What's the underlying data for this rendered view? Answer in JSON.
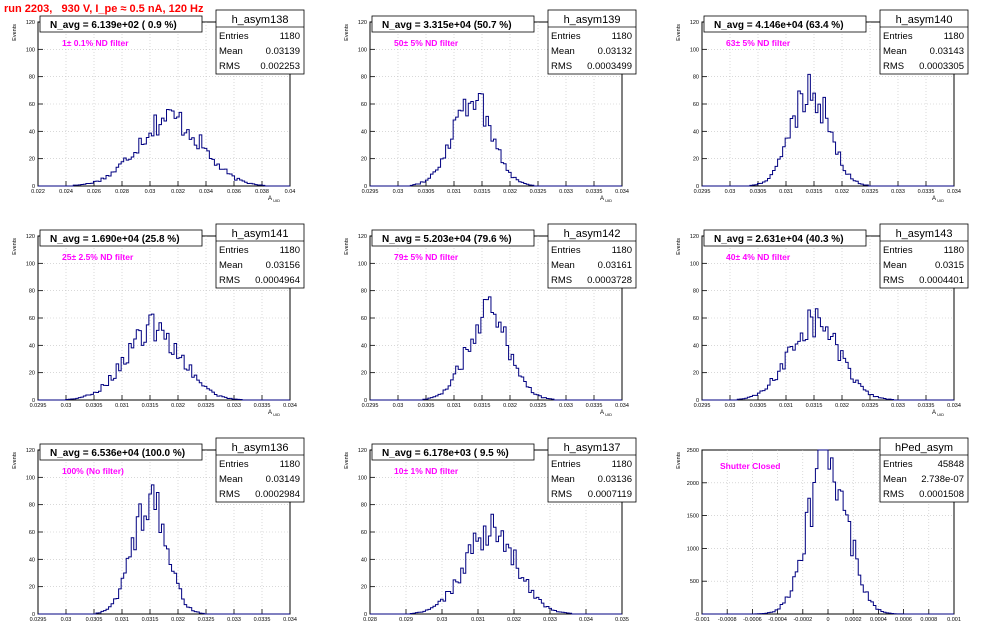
{
  "canvas_title": "run 2203,   930 V, I_pe ≈ 0.5 nA, 120 Hz",
  "colors": {
    "title": "#ff0000",
    "histogram": "#000080",
    "annotation": "#ff00ff",
    "grid": "#c0c0c0"
  },
  "chart_data": [
    {
      "type": "bar",
      "name": "h_asym138",
      "navg_label": "N_avg = 6.139e+02 ( 0.9 %)",
      "annotation": "1± 0.1% ND filter",
      "stats": {
        "Entries": "1180",
        "Mean": "0.03139",
        "RMS": "0.002253"
      },
      "stat_labels": [
        "Entries",
        "Mean",
        "RMS"
      ],
      "ylabel": "Events",
      "xlabel": "A_UID",
      "xlim": [
        0.022,
        0.04
      ],
      "ylim": [
        0,
        120
      ],
      "xticks": [
        "0.022",
        "0.024",
        "0.026",
        "0.028",
        "0.03",
        "0.032",
        "0.034",
        "0.036",
        "0.038",
        "0.04"
      ],
      "yticks": [
        "0",
        "20",
        "40",
        "60",
        "80",
        "100",
        "120"
      ],
      "mean": 0.03139,
      "rms": 0.002253,
      "peak": 50
    },
    {
      "type": "bar",
      "name": "h_asym139",
      "navg_label": "N_avg = 3.315e+04 (50.7 %)",
      "annotation": "50± 5% ND filter",
      "stats": {
        "Entries": "1180",
        "Mean": "0.03132",
        "RMS": "0.0003499"
      },
      "stat_labels": [
        "Entries",
        "Mean",
        "RMS"
      ],
      "ylabel": "Events",
      "xlabel": "A_UID",
      "xlim": [
        0.0295,
        0.034
      ],
      "ylim": [
        0,
        120
      ],
      "xticks": [
        "0.0295",
        "0.03",
        "0.0305",
        "0.031",
        "0.0315",
        "0.032",
        "0.0325",
        "0.033",
        "0.0335",
        "0.034"
      ],
      "yticks": [
        "0",
        "20",
        "40",
        "60",
        "80",
        "100",
        "120"
      ],
      "mean": 0.03132,
      "rms": 0.0003499,
      "peak": 66
    },
    {
      "type": "bar",
      "name": "h_asym140",
      "navg_label": "N_avg = 4.146e+04 (63.4 %)",
      "annotation": "63± 5% ND filter",
      "stats": {
        "Entries": "1180",
        "Mean": "0.03143",
        "RMS": "0.0003305"
      },
      "stat_labels": [
        "Entries",
        "Mean",
        "RMS"
      ],
      "ylabel": "Events",
      "xlabel": "A_UID",
      "xlim": [
        0.0295,
        0.034
      ],
      "ylim": [
        0,
        120
      ],
      "xticks": [
        "0.0295",
        "0.03",
        "0.0305",
        "0.031",
        "0.0315",
        "0.032",
        "0.0325",
        "0.033",
        "0.0335",
        "0.034"
      ],
      "yticks": [
        "0",
        "20",
        "40",
        "60",
        "80",
        "100",
        "120"
      ],
      "mean": 0.03143,
      "rms": 0.0003305,
      "peak": 72
    },
    {
      "type": "bar",
      "name": "h_asym141",
      "navg_label": "N_avg = 1.690e+04 (25.8 %)",
      "annotation": "25± 2.5% ND filter",
      "stats": {
        "Entries": "1180",
        "Mean": "0.03156",
        "RMS": "0.0004964"
      },
      "stat_labels": [
        "Entries",
        "Mean",
        "RMS"
      ],
      "ylabel": "Events",
      "xlabel": "A_UID",
      "xlim": [
        0.0295,
        0.034
      ],
      "ylim": [
        0,
        120
      ],
      "xticks": [
        "0.0295",
        "0.03",
        "0.0305",
        "0.031",
        "0.0315",
        "0.032",
        "0.0325",
        "0.033",
        "0.0335",
        "0.034"
      ],
      "yticks": [
        "0",
        "20",
        "40",
        "60",
        "80",
        "100",
        "120"
      ],
      "mean": 0.03156,
      "rms": 0.0004964,
      "peak": 52
    },
    {
      "type": "bar",
      "name": "h_asym142",
      "navg_label": "N_avg = 5.203e+04 (79.6 %)",
      "annotation": "79± 5% ND filter",
      "stats": {
        "Entries": "1180",
        "Mean": "0.03161",
        "RMS": "0.0003728"
      },
      "stat_labels": [
        "Entries",
        "Mean",
        "RMS"
      ],
      "ylabel": "Events",
      "xlabel": "A_UID",
      "xlim": [
        0.0295,
        0.034
      ],
      "ylim": [
        0,
        120
      ],
      "xticks": [
        "0.0295",
        "0.03",
        "0.0305",
        "0.031",
        "0.0315",
        "0.032",
        "0.0325",
        "0.033",
        "0.0335",
        "0.034"
      ],
      "yticks": [
        "0",
        "20",
        "40",
        "60",
        "80",
        "100",
        "120"
      ],
      "mean": 0.03161,
      "rms": 0.0003728,
      "peak": 63
    },
    {
      "type": "bar",
      "name": "h_asym143",
      "navg_label": "N_avg = 2.631e+04 (40.3 %)",
      "annotation": "40± 4% ND filter",
      "stats": {
        "Entries": "1180",
        "Mean": "0.0315",
        "RMS": "0.0004401"
      },
      "stat_labels": [
        "Entries",
        "Mean",
        "RMS"
      ],
      "ylabel": "Events",
      "xlabel": "A_UID",
      "xlim": [
        0.0295,
        0.034
      ],
      "ylim": [
        0,
        120
      ],
      "xticks": [
        "0.0295",
        "0.03",
        "0.0305",
        "0.031",
        "0.0315",
        "0.032",
        "0.0325",
        "0.033",
        "0.0335",
        "0.034"
      ],
      "yticks": [
        "0",
        "20",
        "40",
        "60",
        "80",
        "100",
        "120"
      ],
      "mean": 0.0315,
      "rms": 0.0004401,
      "peak": 58
    },
    {
      "type": "bar",
      "name": "h_asym136",
      "navg_label": "N_avg = 6.536e+04 (100.0 %)",
      "annotation": "100% (No filter)",
      "stats": {
        "Entries": "1180",
        "Mean": "0.03149",
        "RMS": "0.0002984"
      },
      "stat_labels": [
        "Entries",
        "Mean",
        "RMS"
      ],
      "ylabel": "Events",
      "xlabel": "A_UID",
      "xlim": [
        0.0295,
        0.034
      ],
      "ylim": [
        0,
        120
      ],
      "xticks": [
        "0.0295",
        "0.03",
        "0.0305",
        "0.031",
        "0.0315",
        "0.032",
        "0.0325",
        "0.033",
        "0.0335",
        "0.034"
      ],
      "yticks": [
        "0",
        "20",
        "40",
        "60",
        "80",
        "100",
        "120"
      ],
      "mean": 0.03149,
      "rms": 0.0002984,
      "peak": 85
    },
    {
      "type": "bar",
      "name": "h_asym137",
      "navg_label": "N_avg = 6.178e+03 ( 9.5 %)",
      "annotation": "10± 1% ND filter",
      "stats": {
        "Entries": "1180",
        "Mean": "0.03136",
        "RMS": "0.0007119"
      },
      "stat_labels": [
        "Entries",
        "Mean",
        "RMS"
      ],
      "ylabel": "Events",
      "xlabel": "A_UID",
      "xlim": [
        0.028,
        0.035
      ],
      "ylim": [
        0,
        120
      ],
      "xticks": [
        "0.028",
        "0.029",
        "0.03",
        "0.031",
        "0.032",
        "0.033",
        "0.034",
        "0.035"
      ],
      "yticks": [
        "0",
        "20",
        "40",
        "60",
        "80",
        "100",
        "120"
      ],
      "mean": 0.03136,
      "rms": 0.0007119,
      "peak": 60
    },
    {
      "type": "bar",
      "name": "hPed_asym",
      "navg_label": "",
      "annotation": "Shutter Closed",
      "stats": {
        "Entries": "45848",
        "Mean": "2.738e-07",
        "RMS": "0.0001508"
      },
      "stat_labels": [
        "Entries",
        "Mean",
        "RMS"
      ],
      "ylabel": "Events",
      "xlabel": "A_UID",
      "xlim": [
        -0.001,
        0.001
      ],
      "ylim": [
        0,
        2500
      ],
      "xticks": [
        "-0.001",
        "-0.0008",
        "-0.0006",
        "-0.0004",
        "-0.0002",
        "0",
        "0.0002",
        "0.0004",
        "0.0006",
        "0.0008",
        "0.001"
      ],
      "yticks": [
        "0",
        "500",
        "1000",
        "1500",
        "2000",
        "2500"
      ],
      "mean": 0.0,
      "rms": 0.0001508,
      "peak": 2450
    }
  ]
}
